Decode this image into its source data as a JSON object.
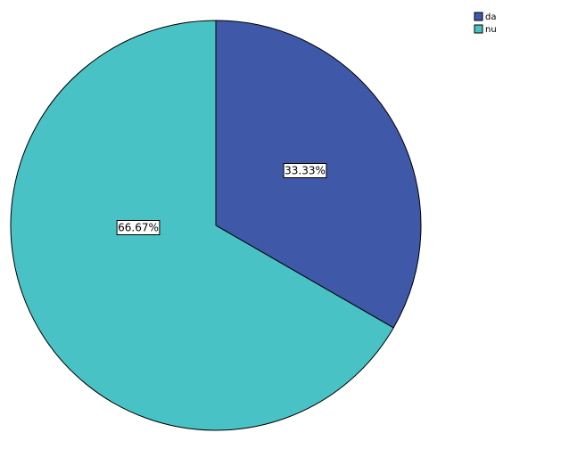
{
  "chart_data": {
    "type": "pie",
    "categories": [
      "da",
      "nu"
    ],
    "values": [
      33.33,
      66.67
    ],
    "value_labels": [
      "33.33%",
      "66.67%"
    ],
    "colors": [
      "#3f58a8",
      "#48c2c4"
    ],
    "legend": "top-right"
  }
}
